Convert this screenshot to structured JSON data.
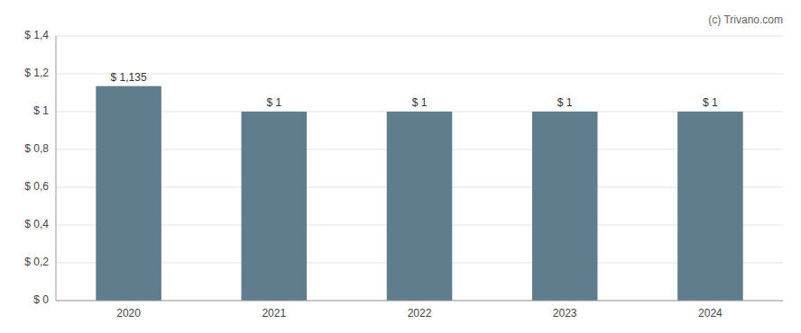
{
  "chart_data": {
    "type": "bar",
    "categories": [
      "2020",
      "2021",
      "2022",
      "2023",
      "2024"
    ],
    "values": [
      1.135,
      1.0,
      1.0,
      1.0,
      1.0
    ],
    "value_labels": [
      "$ 1,135",
      "$ 1",
      "$ 1",
      "$ 1",
      "$ 1"
    ],
    "data_labels": true,
    "color": "#5f7d8c",
    "ylim": [
      0,
      1.4
    ],
    "yticks": [
      {
        "value": 0,
        "label": "$ 0"
      },
      {
        "value": 0.2,
        "label": "$ 0,2"
      },
      {
        "value": 0.4,
        "label": "$ 0,4"
      },
      {
        "value": 0.6,
        "label": "$ 0,6"
      },
      {
        "value": 0.8,
        "label": "$ 0,8"
      },
      {
        "value": 1.0,
        "label": "$ 1"
      },
      {
        "value": 1.2,
        "label": "$ 1,2"
      },
      {
        "value": 1.4,
        "label": "$ 1,4"
      }
    ],
    "grid": true,
    "annotations": [
      "(c) Trivano.com"
    ]
  }
}
